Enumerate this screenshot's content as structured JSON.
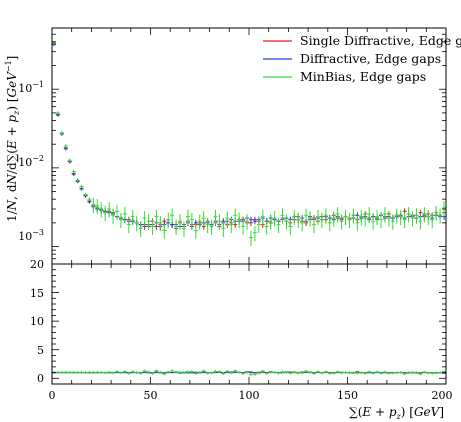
{
  "chart_data": {
    "type": "scatter",
    "title": "",
    "xlabel": "∑(E + p_z) [GeV]",
    "ylabel": "1/N dN/d∑(E + p_z) [GeV^-1]",
    "xlim": [
      0,
      200
    ],
    "ylim": [
      0.0006,
      0.6
    ],
    "yscale": "log",
    "grid": false,
    "legend_position": "top-right",
    "x_ticks": [
      "0",
      "50",
      "100",
      "150",
      "200"
    ],
    "y_ticks": [
      "10^-1",
      "10^-2",
      "10^-3"
    ],
    "ratio_ylim": [
      -1,
      20
    ],
    "ratio_ticks": [
      "0",
      "5",
      "10",
      "15",
      "20"
    ],
    "x": [
      1,
      3,
      5,
      7,
      9,
      11,
      13,
      15,
      17,
      19,
      21,
      23,
      25,
      27,
      29,
      31,
      33,
      35,
      37,
      39,
      41,
      43,
      45,
      47,
      49,
      51,
      53,
      55,
      57,
      59,
      61,
      63,
      65,
      67,
      69,
      71,
      73,
      75,
      77,
      79,
      81,
      83,
      85,
      87,
      89,
      91,
      93,
      95,
      97,
      99,
      101,
      103,
      105,
      107,
      109,
      111,
      113,
      115,
      117,
      119,
      121,
      123,
      125,
      127,
      129,
      131,
      133,
      135,
      137,
      139,
      141,
      143,
      145,
      147,
      149,
      151,
      153,
      155,
      157,
      159,
      161,
      163,
      165,
      167,
      169,
      171,
      173,
      175,
      177,
      179,
      181,
      183,
      185,
      187,
      189,
      191,
      193,
      195,
      197,
      199
    ],
    "series": [
      {
        "name": "Single Diffractive, Edge gaps",
        "color": "#e31a1c",
        "values": [
          0.38,
          0.048,
          0.027,
          0.018,
          0.012,
          0.0085,
          0.0068,
          0.0055,
          0.0045,
          0.0038,
          0.0033,
          0.0031,
          0.0029,
          0.0028,
          0.0028,
          0.0027,
          0.0024,
          0.0023,
          0.0022,
          0.0022,
          0.0021,
          0.002,
          0.0019,
          0.0018,
          0.0019,
          0.0021,
          0.0018,
          0.0019,
          0.0021,
          0.002,
          0.0019,
          0.0017,
          0.002,
          0.0018,
          0.0021,
          0.0019,
          0.0019,
          0.002,
          0.0018,
          0.0021,
          0.0019,
          0.002,
          0.0018,
          0.0021,
          0.0019,
          0.002,
          0.0019,
          0.0021,
          0.0022,
          0.002,
          0.002,
          0.0022,
          0.0021,
          0.0019,
          0.0021,
          0.002,
          0.0022,
          0.0021,
          0.0023,
          0.0021,
          0.002,
          0.0022,
          0.0024,
          0.0021,
          0.002,
          0.0022,
          0.0023,
          0.0021,
          0.0024,
          0.0022,
          0.0023,
          0.0025,
          0.0023,
          0.0022,
          0.0024,
          0.0023,
          0.0025,
          0.0022,
          0.0024,
          0.0026,
          0.0023,
          0.0024,
          0.0022,
          0.0025,
          0.0024,
          0.0026,
          0.0023,
          0.0025,
          0.0024,
          0.0028,
          0.0026,
          0.0024,
          0.0025,
          0.0027,
          0.0024,
          0.0026,
          0.0025,
          0.0027,
          0.0025,
          0.0027
        ]
      },
      {
        "name": "Diffractive, Edge gaps",
        "color": "#1f3fd6",
        "values": [
          0.37,
          0.047,
          0.027,
          0.0175,
          0.012,
          0.0083,
          0.0067,
          0.0054,
          0.0044,
          0.0037,
          0.0032,
          0.003,
          0.0029,
          0.0028,
          0.0027,
          0.0026,
          0.0024,
          0.0023,
          0.0022,
          0.0021,
          0.0021,
          0.002,
          0.0019,
          0.0019,
          0.0018,
          0.0019,
          0.002,
          0.0018,
          0.0019,
          0.002,
          0.0019,
          0.0019,
          0.0018,
          0.0019,
          0.002,
          0.0018,
          0.002,
          0.0019,
          0.002,
          0.002,
          0.0019,
          0.0021,
          0.0019,
          0.002,
          0.0021,
          0.0022,
          0.0021,
          0.0022,
          0.0021,
          0.0023,
          0.0022,
          0.0021,
          0.0022,
          0.0023,
          0.0021,
          0.0023,
          0.0022,
          0.0021,
          0.0022,
          0.0023,
          0.0022,
          0.0024,
          0.0022,
          0.0023,
          0.0021,
          0.0024,
          0.0022,
          0.0023,
          0.0022,
          0.0024,
          0.0023,
          0.0022,
          0.0024,
          0.0023,
          0.0024,
          0.0022,
          0.0023,
          0.0025,
          0.0023,
          0.0024,
          0.0022,
          0.0024,
          0.0023,
          0.0025,
          0.0023,
          0.0024,
          0.0023,
          0.0024,
          0.0025,
          0.0023,
          0.0024,
          0.0025,
          0.0023,
          0.0024,
          0.0025,
          0.0024,
          0.0023,
          0.0025,
          0.0024,
          0.0024
        ]
      },
      {
        "name": "MinBias, Edge gaps",
        "color": "#33dd33",
        "values": [
          0.39,
          0.05,
          0.028,
          0.019,
          0.0125,
          0.009,
          0.007,
          0.0058,
          0.0046,
          0.004,
          0.0034,
          0.0033,
          0.003,
          0.0027,
          0.003,
          0.0025,
          0.0028,
          0.0022,
          0.0026,
          0.0019,
          0.0024,
          0.002,
          0.0017,
          0.0023,
          0.0021,
          0.0018,
          0.0024,
          0.002,
          0.0016,
          0.0022,
          0.0025,
          0.0018,
          0.0021,
          0.0017,
          0.0024,
          0.0022,
          0.0016,
          0.0021,
          0.0023,
          0.0019,
          0.0018,
          0.0024,
          0.0021,
          0.0017,
          0.0023,
          0.0019,
          0.0025,
          0.0022,
          0.0018,
          0.0021,
          0.0013,
          0.0015,
          0.0019,
          0.0024,
          0.0018,
          0.0021,
          0.0023,
          0.0019,
          0.0025,
          0.0021,
          0.0018,
          0.0024,
          0.0022,
          0.002,
          0.0025,
          0.0023,
          0.0019,
          0.0024,
          0.0022,
          0.0025,
          0.002,
          0.0023,
          0.0026,
          0.0021,
          0.0024,
          0.0022,
          0.0025,
          0.002,
          0.0024,
          0.0023,
          0.0026,
          0.0021,
          0.0024,
          0.0022,
          0.0026,
          0.0023,
          0.0021,
          0.0025,
          0.0024,
          0.0022,
          0.0026,
          0.0023,
          0.0025,
          0.0021,
          0.0026,
          0.0024,
          0.0022,
          0.0027,
          0.0025,
          0.0031
        ]
      }
    ],
    "ratio": [
      {
        "name": "Single Diffractive, Edge gaps",
        "color": "#e31a1c",
        "values": [
          1.0,
          1.0,
          1.0,
          1.0,
          1.0,
          1.0,
          1.0,
          1.0,
          1.0,
          1.0,
          1.0,
          1.0,
          1.0,
          1.0,
          1.0,
          1.0,
          1.0,
          1.0,
          1.0,
          1.0,
          1.0,
          1.0,
          1.0,
          1.0,
          1.0,
          1.0,
          1.0,
          1.0,
          1.0,
          1.0,
          1.0,
          1.0,
          1.0,
          1.0,
          1.0,
          1.0,
          1.0,
          1.0,
          1.0,
          1.0,
          1.0,
          1.0,
          1.0,
          1.0,
          1.0,
          1.0,
          1.0,
          1.0,
          1.0,
          1.0,
          1.0,
          1.0,
          1.0,
          1.0,
          1.0,
          1.0,
          1.0,
          1.0,
          1.0,
          1.0,
          1.0,
          1.0,
          1.0,
          1.0,
          1.0,
          1.0,
          1.0,
          1.0,
          1.0,
          1.0,
          1.0,
          1.0,
          1.0,
          1.0,
          1.0,
          1.0,
          1.0,
          1.0,
          1.0,
          1.0,
          1.0,
          1.0,
          1.0,
          1.0,
          1.0,
          1.0,
          1.0,
          1.0,
          1.0,
          1.0,
          1.0,
          1.0,
          1.0,
          1.0,
          1.0,
          1.0,
          1.0,
          1.0,
          1.0,
          1.0
        ]
      },
      {
        "name": "Diffractive, Edge gaps",
        "color": "#1f3fd6",
        "values": [
          0.97,
          0.98,
          1.0,
          0.97,
          1.0,
          0.98,
          0.99,
          0.98,
          0.98,
          0.97,
          0.97,
          0.97,
          1.0,
          1.0,
          0.96,
          0.96,
          1.0,
          1.0,
          1.0,
          0.95,
          1.0,
          1.0,
          1.0,
          1.06,
          0.95,
          0.9,
          1.11,
          0.95,
          0.9,
          1.0,
          1.0,
          1.12,
          0.9,
          1.06,
          0.95,
          0.95,
          1.05,
          0.95,
          1.11,
          0.95,
          1.0,
          1.05,
          1.06,
          0.95,
          1.1,
          1.1,
          1.1,
          1.05,
          0.95,
          1.15,
          1.1,
          0.95,
          1.05,
          1.21,
          1.0,
          1.15,
          1.0,
          1.0,
          0.96,
          1.1,
          1.1,
          1.09,
          0.92,
          1.1,
          1.05,
          1.09,
          0.96,
          1.1,
          0.92,
          1.09,
          1.0,
          0.88,
          1.04,
          1.05,
          1.0,
          0.96,
          0.92,
          1.14,
          0.96,
          0.92,
          0.96,
          1.0,
          1.05,
          1.0,
          0.96,
          0.92,
          1.0,
          0.96,
          1.04,
          0.82,
          0.92,
          1.04,
          0.92,
          0.89,
          1.04,
          0.92,
          0.92,
          0.93,
          0.96,
          0.89
        ]
      },
      {
        "name": "MinBias, Edge gaps",
        "color": "#33dd33",
        "values": [
          1.03,
          1.04,
          1.04,
          1.06,
          1.04,
          1.06,
          1.03,
          1.05,
          1.02,
          1.05,
          1.03,
          1.06,
          1.03,
          0.96,
          1.07,
          0.93,
          1.17,
          0.96,
          1.18,
          0.86,
          1.14,
          1.0,
          0.89,
          1.28,
          1.11,
          0.86,
          1.33,
          1.05,
          0.76,
          1.1,
          1.32,
          1.06,
          1.05,
          0.94,
          1.14,
          1.16,
          0.84,
          1.05,
          1.28,
          0.9,
          0.95,
          1.2,
          1.17,
          0.81,
          1.21,
          0.95,
          1.32,
          1.05,
          0.82,
          1.05,
          0.65,
          0.68,
          0.9,
          1.26,
          0.86,
          1.05,
          1.05,
          0.9,
          1.09,
          1.0,
          0.9,
          1.09,
          0.92,
          0.95,
          1.25,
          1.05,
          0.83,
          1.14,
          0.92,
          1.14,
          0.87,
          0.92,
          1.13,
          0.95,
          1.0,
          0.96,
          1.0,
          0.91,
          1.0,
          0.88,
          1.13,
          0.88,
          1.09,
          0.88,
          1.08,
          0.88,
          0.91,
          1.0,
          1.0,
          0.79,
          1.0,
          0.96,
          1.0,
          0.78,
          1.08,
          0.92,
          0.88,
          1.0,
          1.0,
          1.15
        ]
      }
    ]
  }
}
